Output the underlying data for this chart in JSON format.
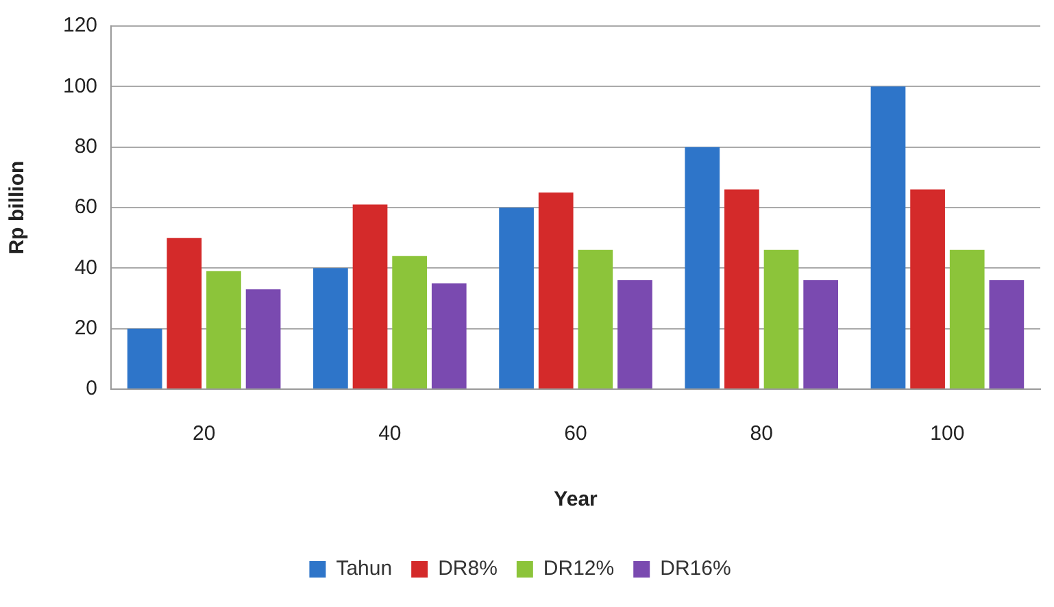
{
  "chart_data": {
    "type": "bar",
    "categories": [
      "20",
      "40",
      "60",
      "80",
      "100"
    ],
    "xlabel": "Year",
    "ylabel": "Rp billion",
    "ylim": [
      0,
      120
    ],
    "yticks": [
      0,
      20,
      40,
      60,
      80,
      100,
      120
    ],
    "grid": "y",
    "legend": "bottom",
    "series": [
      {
        "name": "Tahun",
        "color": "#2e75c9",
        "values": [
          20,
          40,
          60,
          80,
          100
        ]
      },
      {
        "name": "DR8%",
        "color": "#d42a2a",
        "values": [
          50,
          61,
          65,
          66,
          66
        ]
      },
      {
        "name": "DR12%",
        "color": "#8cc43a",
        "values": [
          39,
          44,
          46,
          46,
          46
        ]
      },
      {
        "name": "DR16%",
        "color": "#7a4ab0",
        "values": [
          33,
          35,
          36,
          36,
          36
        ]
      }
    ]
  }
}
